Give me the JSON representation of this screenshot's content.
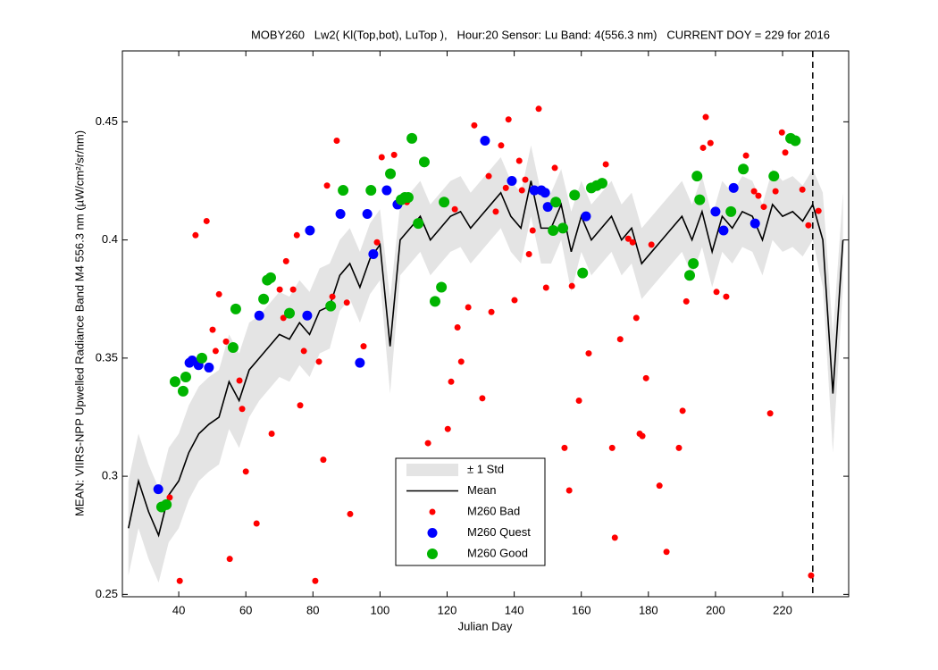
{
  "chart_data": {
    "type": "line",
    "title": "MOBY260   Lw2( Kl(Top,bot), LuTop ),   Hour:20 Sensor: Lu Band: 4(556.3 nm)   CURRENT DOY = 229 for 2016",
    "xlabel": "Julian Day",
    "ylabel": "MEAN: VIIRS-NPP Upwelled Radiance Band M4 556.3 nm (µW/cm²/sr/nm)",
    "xlim": [
      23.2,
      239.7
    ],
    "ylim": [
      0.249,
      0.48
    ],
    "xticks": [
      40,
      60,
      80,
      100,
      120,
      140,
      160,
      180,
      200,
      220
    ],
    "yticks": [
      0.25,
      0.3,
      0.35,
      0.4,
      0.45
    ],
    "current_doy": 229,
    "legend": "bottom-center",
    "x": [
      25,
      28,
      31,
      34,
      37,
      40,
      43,
      46,
      49,
      52,
      55,
      58,
      61,
      64,
      67,
      70,
      73,
      76,
      79,
      82,
      85,
      88,
      91,
      94,
      97,
      100,
      103,
      106,
      109,
      112,
      115,
      118,
      121,
      124,
      127,
      130,
      133,
      136,
      139,
      142,
      145,
      148,
      151,
      154,
      157,
      160,
      163,
      166,
      169,
      172,
      175,
      178,
      181,
      184,
      187,
      190,
      193,
      196,
      199,
      202,
      205,
      208,
      211,
      214,
      217,
      220,
      223,
      226,
      229,
      232,
      235,
      238
    ],
    "band": {
      "name": "± 1 Std",
      "color": "#e4e4e4",
      "upper": [
        0.298,
        0.318,
        0.305,
        0.295,
        0.312,
        0.318,
        0.33,
        0.338,
        0.342,
        0.345,
        0.36,
        0.352,
        0.365,
        0.368,
        0.373,
        0.378,
        0.376,
        0.383,
        0.378,
        0.388,
        0.39,
        0.4,
        0.405,
        0.395,
        0.407,
        0.413,
        0.375,
        0.415,
        0.42,
        0.425,
        0.415,
        0.42,
        0.425,
        0.427,
        0.42,
        0.425,
        0.43,
        0.435,
        0.425,
        0.42,
        0.44,
        0.42,
        0.42,
        0.43,
        0.412,
        0.425,
        0.415,
        0.42,
        0.425,
        0.415,
        0.42,
        0.405,
        0.41,
        0.415,
        0.42,
        0.425,
        0.415,
        0.427,
        0.41,
        0.425,
        0.42,
        0.427,
        0.425,
        0.415,
        0.43,
        0.425,
        0.427,
        0.423,
        0.43,
        0.42,
        0.36,
        0.42
      ],
      "lower": [
        0.258,
        0.278,
        0.265,
        0.255,
        0.272,
        0.278,
        0.29,
        0.298,
        0.302,
        0.305,
        0.32,
        0.312,
        0.325,
        0.332,
        0.337,
        0.342,
        0.34,
        0.347,
        0.342,
        0.352,
        0.354,
        0.37,
        0.375,
        0.365,
        0.377,
        0.383,
        0.335,
        0.385,
        0.39,
        0.395,
        0.385,
        0.39,
        0.395,
        0.397,
        0.39,
        0.395,
        0.4,
        0.405,
        0.395,
        0.39,
        0.41,
        0.39,
        0.39,
        0.4,
        0.378,
        0.395,
        0.385,
        0.39,
        0.395,
        0.385,
        0.39,
        0.375,
        0.38,
        0.385,
        0.39,
        0.395,
        0.385,
        0.397,
        0.38,
        0.395,
        0.39,
        0.397,
        0.395,
        0.385,
        0.4,
        0.395,
        0.397,
        0.393,
        0.4,
        0.38,
        0.31,
        0.38
      ]
    },
    "series": [
      {
        "name": "Mean",
        "color": "#000000",
        "values": [
          0.278,
          0.298,
          0.285,
          0.275,
          0.292,
          0.298,
          0.31,
          0.318,
          0.322,
          0.325,
          0.34,
          0.332,
          0.345,
          0.35,
          0.355,
          0.36,
          0.358,
          0.365,
          0.36,
          0.37,
          0.372,
          0.385,
          0.39,
          0.38,
          0.392,
          0.398,
          0.355,
          0.4,
          0.405,
          0.41,
          0.4,
          0.405,
          0.41,
          0.412,
          0.405,
          0.41,
          0.415,
          0.42,
          0.41,
          0.405,
          0.425,
          0.405,
          0.405,
          0.415,
          0.395,
          0.41,
          0.4,
          0.405,
          0.41,
          0.4,
          0.405,
          0.39,
          0.395,
          0.4,
          0.405,
          0.41,
          0.4,
          0.412,
          0.395,
          0.41,
          0.405,
          0.412,
          0.41,
          0.4,
          0.415,
          0.41,
          0.412,
          0.408,
          0.415,
          0.4,
          0.335,
          0.4
        ]
      }
    ],
    "points": [
      {
        "name": "M260 Bad",
        "color": "#ff0000",
        "x": [
          37.3,
          40.3,
          45,
          48.3,
          50.1,
          51,
          52,
          54.1,
          55.2,
          58.1,
          58.9,
          60,
          63.2,
          67.7,
          70.1,
          71.2,
          72,
          74.1,
          75.2,
          76.2,
          77.3,
          80.7,
          81.8,
          83.1,
          84.2,
          85.8,
          87.1,
          90.1,
          91.1,
          95.1,
          99.1,
          100.5,
          104.2,
          108,
          114.3,
          120.2,
          121.2,
          122.3,
          123.1,
          124.2,
          126.3,
          128.1,
          130.5,
          132.4,
          133.2,
          134.5,
          136.1,
          137.5,
          138.3,
          140.1,
          141.5,
          142.3,
          143.3,
          144.4,
          145.5,
          147.3,
          149.5,
          152.1,
          155,
          156.4,
          157.2,
          159.3,
          162.2,
          167.3,
          169.2,
          170,
          171.6,
          174,
          175.3,
          176.4,
          177.4,
          178.2,
          179.3,
          180.9,
          183.3,
          185.4,
          189.1,
          190.2,
          191.3,
          196.3,
          197.1,
          198.5,
          200.3,
          203.2,
          209.1,
          211.5,
          212.8,
          214.4,
          216.3,
          217.9,
          219.8,
          220.8,
          225.9,
          227.7,
          228.5,
          230.7
        ],
        "values": [
          0.291,
          0.2557,
          0.402,
          0.408,
          0.362,
          0.353,
          0.377,
          0.357,
          0.265,
          0.3405,
          0.3285,
          0.302,
          0.28,
          0.318,
          0.379,
          0.367,
          0.391,
          0.379,
          0.402,
          0.33,
          0.353,
          0.2557,
          0.3485,
          0.307,
          0.423,
          0.376,
          0.442,
          0.3735,
          0.284,
          0.355,
          0.399,
          0.435,
          0.436,
          0.416,
          0.314,
          0.32,
          0.34,
          0.413,
          0.363,
          0.3485,
          0.3715,
          0.4485,
          0.333,
          0.427,
          0.3695,
          0.412,
          0.44,
          0.422,
          0.451,
          0.3745,
          0.4335,
          0.421,
          0.4255,
          0.394,
          0.404,
          0.4555,
          0.3798,
          0.4305,
          0.312,
          0.294,
          0.3805,
          0.332,
          0.352,
          0.432,
          0.312,
          0.274,
          0.358,
          0.4005,
          0.399,
          0.367,
          0.318,
          0.317,
          0.3415,
          0.398,
          0.296,
          0.268,
          0.312,
          0.3277,
          0.374,
          0.439,
          0.452,
          0.441,
          0.378,
          0.376,
          0.4357,
          0.4206,
          0.4187,
          0.414,
          0.3266,
          0.4206,
          0.4455,
          0.437,
          0.4213,
          0.4062,
          0.258,
          0.4123
        ]
      },
      {
        "name": "M260 Quest",
        "color": "#0000ff",
        "x": [
          33.9,
          43.2,
          44,
          45.9,
          49,
          64,
          78.3,
          79.1,
          88.2,
          94,
          96.2,
          98,
          102,
          105.2,
          131.3,
          139.3,
          146,
          148.1,
          149.2,
          150,
          161.4,
          200,
          202.4,
          205.4,
          211.8
        ],
        "values": [
          0.2945,
          0.348,
          0.349,
          0.347,
          0.346,
          0.368,
          0.368,
          0.404,
          0.411,
          0.348,
          0.411,
          0.394,
          0.421,
          0.415,
          0.442,
          0.425,
          0.421,
          0.421,
          0.42,
          0.414,
          0.41,
          0.412,
          0.404,
          0.422,
          0.407
        ]
      },
      {
        "name": "M260 Good",
        "color": "#00b400",
        "x": [
          34.9,
          36.3,
          38.9,
          41.3,
          42.1,
          46.9,
          56.2,
          57,
          65.3,
          66.4,
          67.4,
          73,
          85.3,
          89,
          97.3,
          103.1,
          106.3,
          107.4,
          108.4,
          109.5,
          111.4,
          113.2,
          116.4,
          118.3,
          119.1,
          151.6,
          152.4,
          154.5,
          158,
          160.4,
          163,
          164.6,
          166.2,
          192.3,
          193.4,
          194.5,
          195.3,
          204.6,
          208.3,
          217.4,
          222.4,
          223.8
        ],
        "values": [
          0.287,
          0.288,
          0.34,
          0.336,
          0.342,
          0.35,
          0.3545,
          0.3708,
          0.375,
          0.383,
          0.384,
          0.369,
          0.372,
          0.421,
          0.421,
          0.428,
          0.417,
          0.418,
          0.418,
          0.443,
          0.407,
          0.433,
          0.374,
          0.38,
          0.416,
          0.404,
          0.416,
          0.405,
          0.419,
          0.386,
          0.422,
          0.423,
          0.424,
          0.385,
          0.39,
          0.427,
          0.417,
          0.412,
          0.43,
          0.427,
          0.443,
          0.442
        ]
      }
    ]
  }
}
